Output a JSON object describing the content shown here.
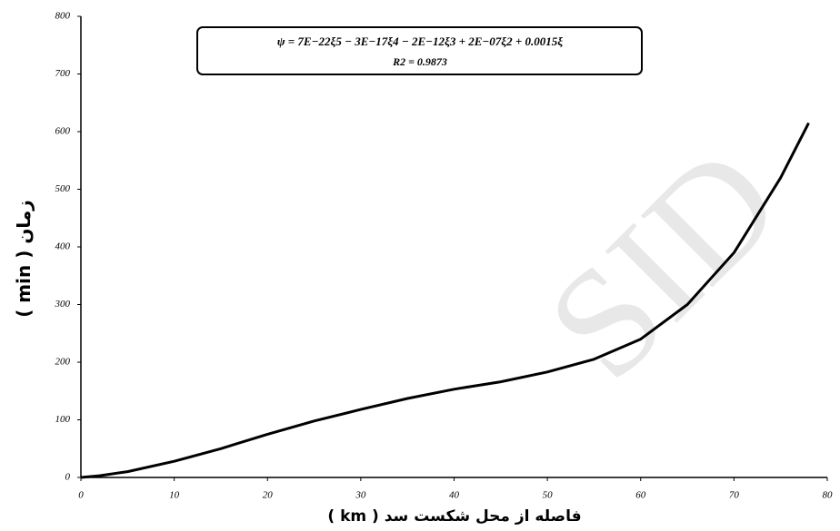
{
  "chart_data": {
    "type": "line",
    "equation": "ψ = 7E−22ξ5 − 3E−17ξ4 − 2E−12ξ3 + 2E−07ξ2 + 0.0015ξ",
    "r_squared": "R2 = 0.9873",
    "x_label": "فاصله از محل شکست سد ( km )",
    "y_label": "زمان ( min )",
    "watermark": "SID",
    "x": [
      0,
      2,
      5,
      10,
      15,
      20,
      25,
      30,
      35,
      40,
      45,
      50,
      55,
      60,
      65,
      70,
      75,
      78
    ],
    "values": [
      0,
      3,
      10,
      28,
      50,
      75,
      98,
      118,
      137,
      153,
      166,
      183,
      205,
      240,
      300,
      390,
      520,
      615
    ],
    "color": "#000000",
    "xlim": [
      0,
      80
    ],
    "xticks": [
      0,
      10,
      20,
      30,
      40,
      50,
      60,
      70,
      80
    ],
    "ylim": [
      0,
      800
    ],
    "yticks": [
      0,
      100,
      200,
      300,
      400,
      500,
      600,
      700,
      800
    ]
  }
}
